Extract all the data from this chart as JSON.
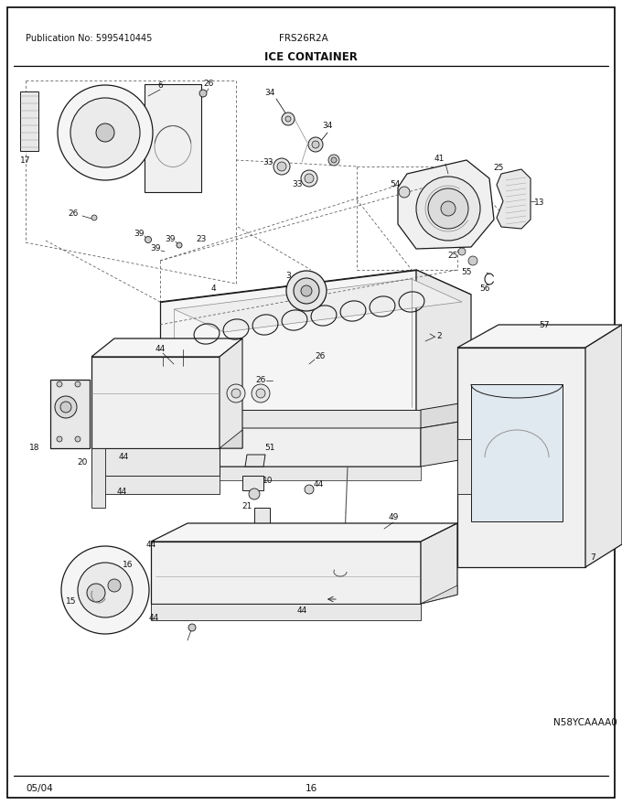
{
  "pub_no": "Publication No: 5995410445",
  "model": "FRS26R2A",
  "title": "ICE CONTAINER",
  "footer_left": "05/04",
  "footer_center": "16",
  "footer_right": "N58YCAAAA0",
  "bg_color": "#ffffff",
  "line_color": "#1a1a1a",
  "label_color": "#111111",
  "fig_width": 6.8,
  "fig_height": 8.8,
  "dpi": 100
}
